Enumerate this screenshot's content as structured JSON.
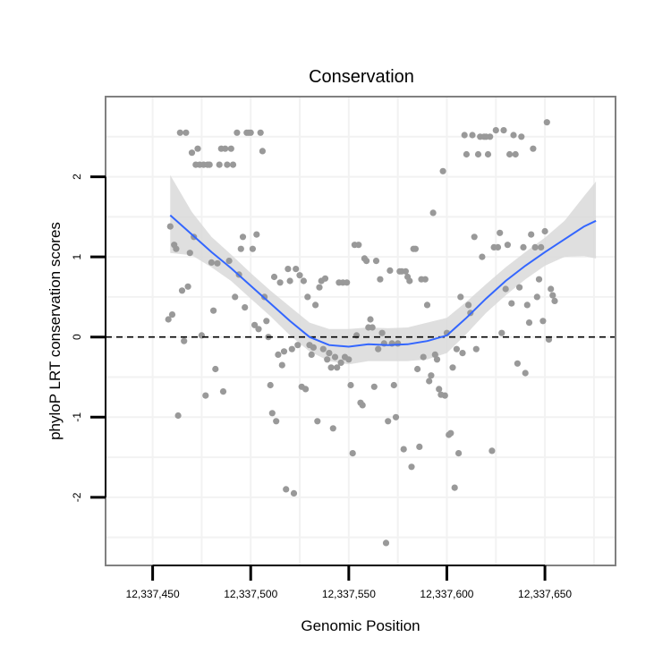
{
  "chart_data": {
    "type": "scatter",
    "title": "Conservation",
    "xlabel": "Genomic Position",
    "ylabel": "phyloP LRT conservation scores",
    "xlim": [
      12337426,
      12337686
    ],
    "ylim": [
      -2.85,
      3.0
    ],
    "x_ticks": [
      {
        "value": 12337450,
        "label": "12,337,450"
      },
      {
        "value": 12337500,
        "label": "12,337,500"
      },
      {
        "value": 12337550,
        "label": "12,337,550"
      },
      {
        "value": 12337600,
        "label": "12,337,600"
      },
      {
        "value": 12337650,
        "label": "12,337,650"
      }
    ],
    "y_ticks": [
      {
        "value": -2,
        "label": "-2"
      },
      {
        "value": -1,
        "label": "-1"
      },
      {
        "value": 0,
        "label": "0"
      },
      {
        "value": 1,
        "label": "1"
      },
      {
        "value": 2,
        "label": "2"
      }
    ],
    "reference_line": {
      "y": 0,
      "style": "dashed"
    },
    "colors": {
      "points": "#999999",
      "smooth_line": "#3366ff",
      "confidence_band": "#d9d9d9",
      "panel_border": "#808080",
      "grid": "#f2f2f2",
      "reference_line": "#000000"
    },
    "points": [
      [
        12337458,
        0.22
      ],
      [
        12337459,
        1.38
      ],
      [
        12337460,
        0.28
      ],
      [
        12337461,
        1.15
      ],
      [
        12337462,
        1.1
      ],
      [
        12337463,
        -0.98
      ],
      [
        12337464,
        2.55
      ],
      [
        12337465,
        0.58
      ],
      [
        12337466,
        -0.05
      ],
      [
        12337467,
        2.55
      ],
      [
        12337468,
        0.63
      ],
      [
        12337469,
        1.05
      ],
      [
        12337470,
        2.3
      ],
      [
        12337471,
        1.25
      ],
      [
        12337472,
        2.15
      ],
      [
        12337473,
        2.35
      ],
      [
        12337474,
        2.15
      ],
      [
        12337475,
        0.02
      ],
      [
        12337476,
        2.15
      ],
      [
        12337477,
        -0.73
      ],
      [
        12337478,
        2.15
      ],
      [
        12337479,
        2.15
      ],
      [
        12337480,
        0.93
      ],
      [
        12337481,
        0.33
      ],
      [
        12337482,
        -0.4
      ],
      [
        12337483,
        0.92
      ],
      [
        12337484,
        2.15
      ],
      [
        12337485,
        2.35
      ],
      [
        12337486,
        -0.68
      ],
      [
        12337487,
        2.35
      ],
      [
        12337488,
        2.15
      ],
      [
        12337489,
        0.95
      ],
      [
        12337490,
        2.35
      ],
      [
        12337491,
        2.15
      ],
      [
        12337492,
        0.5
      ],
      [
        12337493,
        2.55
      ],
      [
        12337494,
        0.78
      ],
      [
        12337495,
        1.1
      ],
      [
        12337496,
        1.25
      ],
      [
        12337497,
        0.37
      ],
      [
        12337498,
        2.55
      ],
      [
        12337499,
        2.55
      ],
      [
        12337500,
        2.55
      ],
      [
        12337501,
        1.1
      ],
      [
        12337502,
        0.15
      ],
      [
        12337503,
        1.28
      ],
      [
        12337504,
        0.1
      ],
      [
        12337505,
        2.55
      ],
      [
        12337506,
        2.32
      ],
      [
        12337507,
        0.5
      ],
      [
        12337508,
        0.2
      ],
      [
        12337509,
        0.0
      ],
      [
        12337510,
        -0.6
      ],
      [
        12337511,
        -0.95
      ],
      [
        12337512,
        0.75
      ],
      [
        12337513,
        -1.05
      ],
      [
        12337514,
        -0.22
      ],
      [
        12337515,
        0.68
      ],
      [
        12337516,
        -0.35
      ],
      [
        12337517,
        -0.18
      ],
      [
        12337518,
        -1.9
      ],
      [
        12337519,
        0.85
      ],
      [
        12337520,
        0.7
      ],
      [
        12337521,
        -0.15
      ],
      [
        12337522,
        -1.95
      ],
      [
        12337523,
        0.85
      ],
      [
        12337524,
        -0.1
      ],
      [
        12337525,
        0.77
      ],
      [
        12337526,
        -0.62
      ],
      [
        12337527,
        0.7
      ],
      [
        12337528,
        -0.65
      ],
      [
        12337529,
        0.5
      ],
      [
        12337530,
        -0.1
      ],
      [
        12337531,
        -0.22
      ],
      [
        12337532,
        -0.13
      ],
      [
        12337533,
        0.4
      ],
      [
        12337534,
        -1.05
      ],
      [
        12337535,
        0.62
      ],
      [
        12337536,
        0.7
      ],
      [
        12337537,
        -0.15
      ],
      [
        12337538,
        0.73
      ],
      [
        12337539,
        -0.28
      ],
      [
        12337540,
        -0.2
      ],
      [
        12337541,
        -0.38
      ],
      [
        12337542,
        -1.14
      ],
      [
        12337543,
        -0.25
      ],
      [
        12337544,
        -0.38
      ],
      [
        12337545,
        0.68
      ],
      [
        12337546,
        -0.32
      ],
      [
        12337547,
        0.68
      ],
      [
        12337548,
        -0.25
      ],
      [
        12337549,
        0.68
      ],
      [
        12337550,
        -0.28
      ],
      [
        12337551,
        -0.6
      ],
      [
        12337552,
        -1.45
      ],
      [
        12337553,
        1.15
      ],
      [
        12337554,
        0.02
      ],
      [
        12337555,
        1.15
      ],
      [
        12337556,
        -0.82
      ],
      [
        12337557,
        -0.85
      ],
      [
        12337558,
        0.98
      ],
      [
        12337559,
        0.95
      ],
      [
        12337560,
        0.12
      ],
      [
        12337561,
        0.22
      ],
      [
        12337562,
        0.12
      ],
      [
        12337563,
        -0.62
      ],
      [
        12337564,
        0.95
      ],
      [
        12337565,
        -0.15
      ],
      [
        12337566,
        0.72
      ],
      [
        12337567,
        0.05
      ],
      [
        12337568,
        -0.08
      ],
      [
        12337569,
        -2.57
      ],
      [
        12337570,
        -1.05
      ],
      [
        12337571,
        0.83
      ],
      [
        12337572,
        -0.08
      ],
      [
        12337573,
        -0.6
      ],
      [
        12337574,
        -1.0
      ],
      [
        12337575,
        -0.08
      ],
      [
        12337576,
        0.82
      ],
      [
        12337577,
        0.82
      ],
      [
        12337578,
        -1.4
      ],
      [
        12337579,
        0.82
      ],
      [
        12337580,
        0.75
      ],
      [
        12337581,
        0.7
      ],
      [
        12337582,
        -1.62
      ],
      [
        12337583,
        1.1
      ],
      [
        12337584,
        1.1
      ],
      [
        12337585,
        -0.4
      ],
      [
        12337586,
        -1.37
      ],
      [
        12337587,
        0.72
      ],
      [
        12337588,
        -0.25
      ],
      [
        12337589,
        0.72
      ],
      [
        12337590,
        0.4
      ],
      [
        12337591,
        -0.55
      ],
      [
        12337592,
        -0.48
      ],
      [
        12337593,
        1.55
      ],
      [
        12337594,
        -0.22
      ],
      [
        12337595,
        -0.28
      ],
      [
        12337596,
        -0.65
      ],
      [
        12337597,
        -0.72
      ],
      [
        12337598,
        2.07
      ],
      [
        12337599,
        -0.73
      ],
      [
        12337600,
        0.05
      ],
      [
        12337601,
        -1.22
      ],
      [
        12337602,
        -1.2
      ],
      [
        12337603,
        -0.38
      ],
      [
        12337604,
        -1.88
      ],
      [
        12337605,
        -0.15
      ],
      [
        12337606,
        -1.45
      ],
      [
        12337607,
        0.5
      ],
      [
        12337608,
        -0.2
      ],
      [
        12337609,
        2.52
      ],
      [
        12337610,
        2.28
      ],
      [
        12337611,
        0.4
      ],
      [
        12337612,
        0.3
      ],
      [
        12337613,
        2.52
      ],
      [
        12337614,
        1.25
      ],
      [
        12337615,
        -0.15
      ],
      [
        12337616,
        2.28
      ],
      [
        12337617,
        2.5
      ],
      [
        12337618,
        1.0
      ],
      [
        12337619,
        2.5
      ],
      [
        12337620,
        2.5
      ],
      [
        12337621,
        2.28
      ],
      [
        12337622,
        2.5
      ],
      [
        12337623,
        -1.42
      ],
      [
        12337624,
        1.12
      ],
      [
        12337625,
        2.58
      ],
      [
        12337626,
        1.12
      ],
      [
        12337627,
        1.3
      ],
      [
        12337628,
        0.05
      ],
      [
        12337629,
        2.58
      ],
      [
        12337630,
        0.6
      ],
      [
        12337631,
        1.15
      ],
      [
        12337632,
        2.28
      ],
      [
        12337633,
        0.42
      ],
      [
        12337634,
        2.52
      ],
      [
        12337635,
        2.28
      ],
      [
        12337636,
        -0.33
      ],
      [
        12337637,
        0.62
      ],
      [
        12337638,
        2.5
      ],
      [
        12337639,
        1.12
      ],
      [
        12337640,
        -0.45
      ],
      [
        12337641,
        0.4
      ],
      [
        12337642,
        0.18
      ],
      [
        12337643,
        1.28
      ],
      [
        12337644,
        2.35
      ],
      [
        12337645,
        1.12
      ],
      [
        12337646,
        0.5
      ],
      [
        12337647,
        0.72
      ],
      [
        12337648,
        1.12
      ],
      [
        12337649,
        0.2
      ],
      [
        12337650,
        1.32
      ],
      [
        12337651,
        2.68
      ],
      [
        12337652,
        -0.03
      ],
      [
        12337653,
        0.6
      ],
      [
        12337654,
        0.52
      ],
      [
        12337655,
        0.45
      ]
    ],
    "smooth": {
      "x": [
        12337459,
        12337470,
        12337480,
        12337490,
        12337500,
        12337510,
        12337520,
        12337530,
        12337540,
        12337550,
        12337560,
        12337570,
        12337580,
        12337590,
        12337600,
        12337610,
        12337620,
        12337630,
        12337640,
        12337650,
        12337660,
        12337670,
        12337676
      ],
      "fit": [
        1.52,
        1.28,
        1.06,
        0.86,
        0.64,
        0.42,
        0.2,
        0.0,
        -0.1,
        -0.12,
        -0.09,
        -0.1,
        -0.09,
        -0.05,
        0.02,
        0.24,
        0.48,
        0.7,
        0.89,
        1.06,
        1.22,
        1.38,
        1.45
      ],
      "lower": [
        1.05,
        1.02,
        0.87,
        0.7,
        0.48,
        0.26,
        0.02,
        -0.18,
        -0.3,
        -0.34,
        -0.3,
        -0.3,
        -0.3,
        -0.28,
        -0.2,
        0.04,
        0.3,
        0.52,
        0.72,
        0.89,
        1.0,
        1.01,
        0.98
      ],
      "upper": [
        2.02,
        1.56,
        1.25,
        1.03,
        0.8,
        0.58,
        0.38,
        0.18,
        0.1,
        0.1,
        0.12,
        0.11,
        0.12,
        0.18,
        0.24,
        0.44,
        0.66,
        0.87,
        1.06,
        1.24,
        1.45,
        1.76,
        1.94
      ]
    }
  }
}
